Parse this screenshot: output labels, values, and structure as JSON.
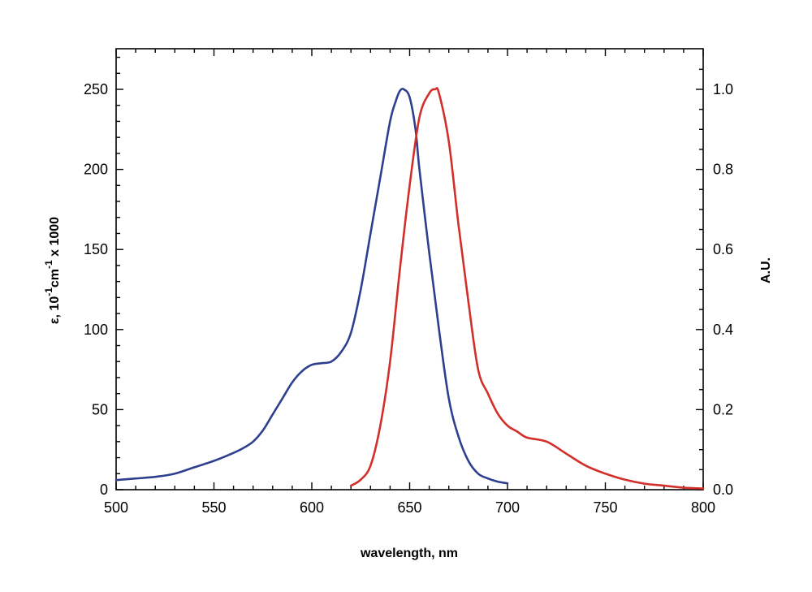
{
  "chart_data": {
    "type": "line",
    "xlabel": "wavelength, nm",
    "ylabel_left": {
      "prefix": "ε, 10",
      "sup1": "-1",
      "mid": "cm",
      "sup2": "-1",
      "suffix": " x 1000"
    },
    "ylabel_right": "A.U.",
    "xlim": [
      500,
      800
    ],
    "ylim_left": [
      0,
      250
    ],
    "ylim_right": [
      0,
      1.0
    ],
    "x_ticks": [
      500,
      550,
      600,
      650,
      700,
      750,
      800
    ],
    "y_left_ticks": [
      0,
      50,
      100,
      150,
      200,
      250
    ],
    "y_right_ticks": [
      "0.0",
      "0.2",
      "0.4",
      "0.6",
      "0.8",
      "1.0"
    ],
    "grid": false,
    "series": [
      {
        "axis": "left",
        "color": "#2e3f8f",
        "x": [
          500,
          510,
          520,
          530,
          540,
          550,
          560,
          565,
          570,
          575,
          580,
          585,
          590,
          595,
          600,
          605,
          610,
          615,
          620,
          625,
          630,
          635,
          640,
          643,
          645,
          647,
          650,
          653,
          655,
          660,
          665,
          670,
          675,
          680,
          685,
          690,
          695,
          700
        ],
        "y": [
          6,
          7,
          8,
          10,
          14,
          18,
          23,
          26,
          30,
          37,
          47,
          57,
          67,
          74,
          78,
          79,
          80,
          86,
          98,
          125,
          160,
          195,
          230,
          243,
          249,
          250,
          245,
          225,
          200,
          148,
          100,
          57,
          33,
          18,
          10,
          7,
          5,
          4
        ]
      },
      {
        "axis": "right",
        "color": "#d32f2a",
        "x": [
          620,
          625,
          630,
          635,
          640,
          645,
          650,
          655,
          660,
          663,
          665,
          670,
          675,
          680,
          685,
          690,
          695,
          700,
          705,
          710,
          720,
          730,
          740,
          750,
          760,
          770,
          780,
          790,
          800
        ],
        "y": [
          0.01,
          0.025,
          0.06,
          0.16,
          0.32,
          0.55,
          0.76,
          0.93,
          0.99,
          1.0,
          0.99,
          0.87,
          0.66,
          0.47,
          0.3,
          0.24,
          0.19,
          0.16,
          0.145,
          0.13,
          0.12,
          0.09,
          0.06,
          0.04,
          0.025,
          0.015,
          0.01,
          0.005,
          0.003
        ]
      }
    ]
  }
}
